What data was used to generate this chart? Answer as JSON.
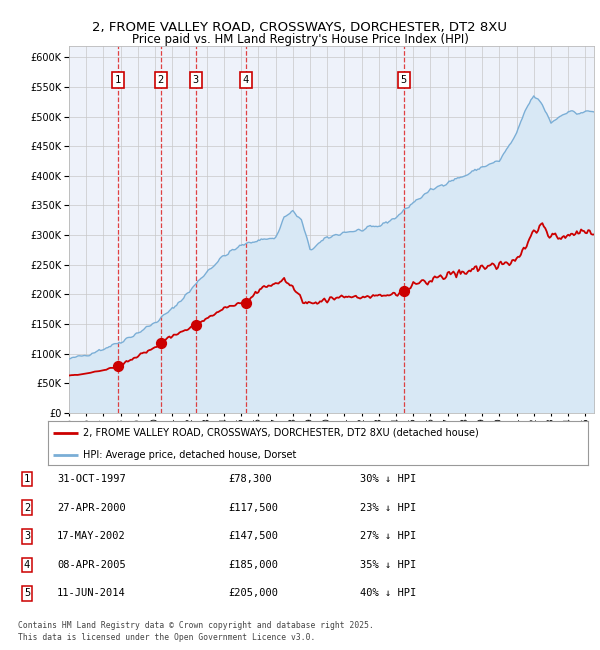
{
  "title_line1": "2, FROME VALLEY ROAD, CROSSWAYS, DORCHESTER, DT2 8XU",
  "title_line2": "Price paid vs. HM Land Registry's House Price Index (HPI)",
  "ylim": [
    0,
    620000
  ],
  "yticks": [
    0,
    50000,
    100000,
    150000,
    200000,
    250000,
    300000,
    350000,
    400000,
    450000,
    500000,
    550000,
    600000
  ],
  "xlim_start": 1995.0,
  "xlim_end": 2025.5,
  "sale_dates": [
    1997.83,
    2000.32,
    2002.37,
    2005.27,
    2014.44
  ],
  "sale_prices": [
    78300,
    117500,
    147500,
    185000,
    205000
  ],
  "sale_labels": [
    "1",
    "2",
    "3",
    "4",
    "5"
  ],
  "red_line_color": "#cc0000",
  "blue_line_color": "#7aaed6",
  "blue_fill_color": "#d8e8f5",
  "legend_red": "2, FROME VALLEY ROAD, CROSSWAYS, DORCHESTER, DT2 8XU (detached house)",
  "legend_blue": "HPI: Average price, detached house, Dorset",
  "table_entries": [
    {
      "num": "1",
      "date": "31-OCT-1997",
      "price": "£78,300",
      "note": "30% ↓ HPI"
    },
    {
      "num": "2",
      "date": "27-APR-2000",
      "price": "£117,500",
      "note": "23% ↓ HPI"
    },
    {
      "num": "3",
      "date": "17-MAY-2002",
      "price": "£147,500",
      "note": "27% ↓ HPI"
    },
    {
      "num": "4",
      "date": "08-APR-2005",
      "price": "£185,000",
      "note": "35% ↓ HPI"
    },
    {
      "num": "5",
      "date": "11-JUN-2014",
      "price": "£205,000",
      "note": "40% ↓ HPI"
    }
  ],
  "footer": "Contains HM Land Registry data © Crown copyright and database right 2025.\nThis data is licensed under the Open Government Licence v3.0.",
  "background_chart": "#eef2fa",
  "background_fig": "#ffffff",
  "grid_color": "#c8c8c8",
  "dashed_vline_color": "#dd2222",
  "blue_vline_color": "#99aacc"
}
